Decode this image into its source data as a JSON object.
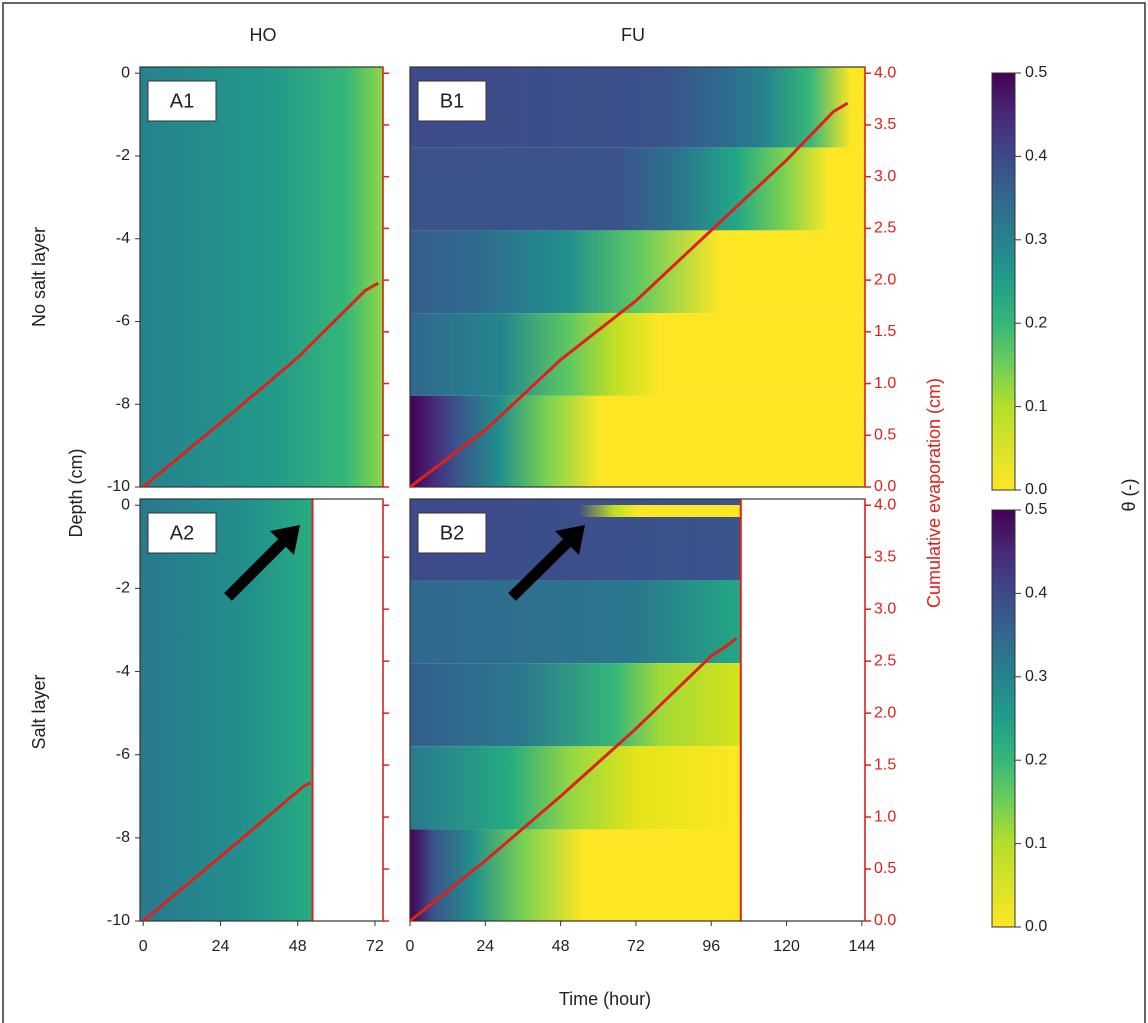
{
  "figure": {
    "columns": [
      "HO",
      "FU"
    ],
    "rows": [
      "No salt layer",
      "Salt layer"
    ],
    "x_label": "Time (hour)",
    "y_label": "Depth (cm)",
    "y2_label": "Cumulative evaporation (cm)",
    "colorbar_label": "θ (-)",
    "colorbar_lim": [
      0,
      0.5
    ],
    "colorbar_ticks": [
      {
        "value": 0,
        "label": "0.0"
      },
      0.1,
      0.2,
      0.3,
      0.4,
      0.5
    ]
  },
  "chart_data": [
    {
      "type": "line",
      "title": "A1",
      "color": "#e0201b",
      "axis": "y2",
      "x": [
        0,
        24,
        48,
        69,
        73
      ],
      "values": [
        0,
        0.62,
        1.25,
        1.9,
        1.97
      ],
      "xlim": [
        -1,
        74.5
      ],
      "ylim": [
        -10,
        0.15
      ],
      "yticks": [
        0,
        -2,
        -4,
        -6,
        -8,
        -10
      ],
      "y2lim": [
        0,
        4.06
      ]
    },
    {
      "type": "line",
      "title": "B1",
      "color": "#e0201b",
      "axis": "y2",
      "x": [
        0,
        24,
        48,
        72,
        96,
        120,
        135,
        139.5
      ],
      "values": [
        0,
        0.55,
        1.23,
        1.8,
        2.48,
        3.16,
        3.63,
        3.71
      ],
      "xlim": [
        0,
        145
      ],
      "y2lim": [
        0,
        4.06
      ],
      "y2ticks": [
        {
          "value": 0,
          "label": "0.0"
        },
        0.5,
        {
          "value": 1,
          "label": "1.0"
        },
        1.5,
        {
          "value": 2,
          "label": "2.0"
        },
        2.5,
        {
          "value": 3,
          "label": "3.0"
        },
        3.5,
        {
          "value": 4,
          "label": "4.0"
        }
      ]
    },
    {
      "type": "line",
      "title": "A2",
      "color": "#e0201b",
      "axis": "y2",
      "x": [
        0,
        24,
        50,
        52
      ],
      "values": [
        0,
        0.62,
        1.3,
        1.33
      ],
      "xlim": [
        -1,
        74.5
      ],
      "xticks": [
        0,
        24,
        48,
        72
      ],
      "ylim": [
        -10,
        0.15
      ],
      "yticks": [
        0,
        -2,
        -4,
        -6,
        -8,
        -10
      ],
      "y2lim": [
        0,
        4.06
      ]
    },
    {
      "type": "line",
      "title": "B2",
      "color": "#e0201b",
      "axis": "y2",
      "x": [
        0,
        24,
        48,
        72,
        96,
        101,
        104
      ],
      "values": [
        0,
        0.58,
        1.2,
        1.85,
        2.55,
        2.65,
        2.72
      ],
      "xlim": [
        0,
        145
      ],
      "xticks": [
        0,
        24,
        48,
        72,
        96,
        120,
        144
      ],
      "y2lim": [
        0,
        4.06
      ],
      "y2ticks": [
        {
          "value": 0,
          "label": "0.0"
        },
        0.5,
        {
          "value": 1,
          "label": "1.0"
        },
        1.5,
        {
          "value": 2,
          "label": "2.0"
        },
        2.5,
        {
          "value": 3,
          "label": "3.0"
        },
        3.5,
        {
          "value": 4,
          "label": "4.0"
        }
      ]
    }
  ]
}
